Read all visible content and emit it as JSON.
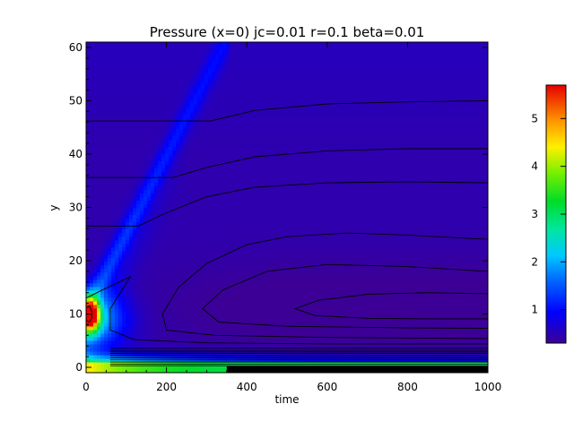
{
  "chart_data": {
    "type": "heatmap",
    "title": "Pressure (x=0) jc=0.01 r=0.1 beta=0.01",
    "xlabel": "time",
    "ylabel": "y",
    "xlim": [
      0,
      1000
    ],
    "ylim": [
      -1,
      61
    ],
    "xticks": [
      0,
      200,
      400,
      600,
      800,
      1000
    ],
    "yticks": [
      0,
      10,
      20,
      30,
      40,
      50,
      60
    ],
    "colorbar": {
      "range": [
        0.3,
        5.7
      ],
      "ticks": [
        1,
        2,
        3,
        4,
        5
      ],
      "colormap": "rainbow"
    },
    "background_value": 0.45,
    "features": [
      {
        "name": "ridge",
        "t0": 0,
        "t1": 340,
        "y0": 11,
        "y1": 60,
        "width": 3.5,
        "value": 1.35
      },
      {
        "name": "source-peak",
        "t": 10,
        "y": 10,
        "value": 5.6
      }
    ],
    "contours": [
      [
        [
          0,
          46.2
        ],
        [
          310,
          46.2
        ],
        [
          420,
          48.2
        ],
        [
          600,
          49.4
        ],
        [
          800,
          49.8
        ],
        [
          1000,
          50.0
        ]
      ],
      [
        [
          0,
          35.6
        ],
        [
          215,
          35.6
        ],
        [
          300,
          37.5
        ],
        [
          420,
          39.5
        ],
        [
          600,
          40.6
        ],
        [
          800,
          41.0
        ],
        [
          1000,
          41.0
        ]
      ],
      [
        [
          0,
          26.5
        ],
        [
          130,
          26.5
        ],
        [
          200,
          29.0
        ],
        [
          300,
          32.0
        ],
        [
          420,
          33.8
        ],
        [
          600,
          34.6
        ],
        [
          800,
          34.8
        ],
        [
          1000,
          34.6
        ]
      ],
      [
        [
          1000,
          24.0
        ],
        [
          800,
          24.8
        ],
        [
          650,
          25.2
        ],
        [
          500,
          24.5
        ],
        [
          400,
          23.0
        ],
        [
          300,
          19.5
        ],
        [
          230,
          15.0
        ],
        [
          190,
          10.0
        ],
        [
          200,
          7.0
        ],
        [
          320,
          6.0
        ],
        [
          600,
          5.6
        ],
        [
          1000,
          5.4
        ]
      ],
      [
        [
          1000,
          18.0
        ],
        [
          800,
          18.9
        ],
        [
          600,
          19.3
        ],
        [
          450,
          18.0
        ],
        [
          340,
          14.5
        ],
        [
          290,
          11.0
        ],
        [
          330,
          8.5
        ],
        [
          500,
          7.7
        ],
        [
          800,
          7.4
        ],
        [
          1000,
          7.3
        ]
      ],
      [
        [
          1000,
          13.8
        ],
        [
          850,
          14.0
        ],
        [
          700,
          13.7
        ],
        [
          580,
          12.6
        ],
        [
          520,
          11.0
        ],
        [
          570,
          9.7
        ],
        [
          700,
          9.2
        ],
        [
          850,
          9.1
        ],
        [
          1000,
          9.1
        ]
      ],
      [
        [
          0,
          13.0
        ],
        [
          40,
          14.5
        ],
        [
          110,
          17.0
        ],
        [
          60,
          11.0
        ],
        [
          60,
          7.0
        ],
        [
          120,
          5.2
        ],
        [
          300,
          4.6
        ],
        [
          600,
          4.4
        ],
        [
          1000,
          4.4
        ]
      ],
      [
        [
          2,
          11.2
        ],
        [
          8,
          11.5
        ],
        [
          14,
          10.5
        ],
        [
          14,
          9.2
        ],
        [
          8,
          8.5
        ],
        [
          2,
          8.8
        ]
      ]
    ],
    "bottom_contour_levels": [
      0.3,
      0.6,
      1.0,
      1.4,
      1.8,
      2.2,
      2.6,
      2.9,
      3.2,
      3.6
    ]
  }
}
